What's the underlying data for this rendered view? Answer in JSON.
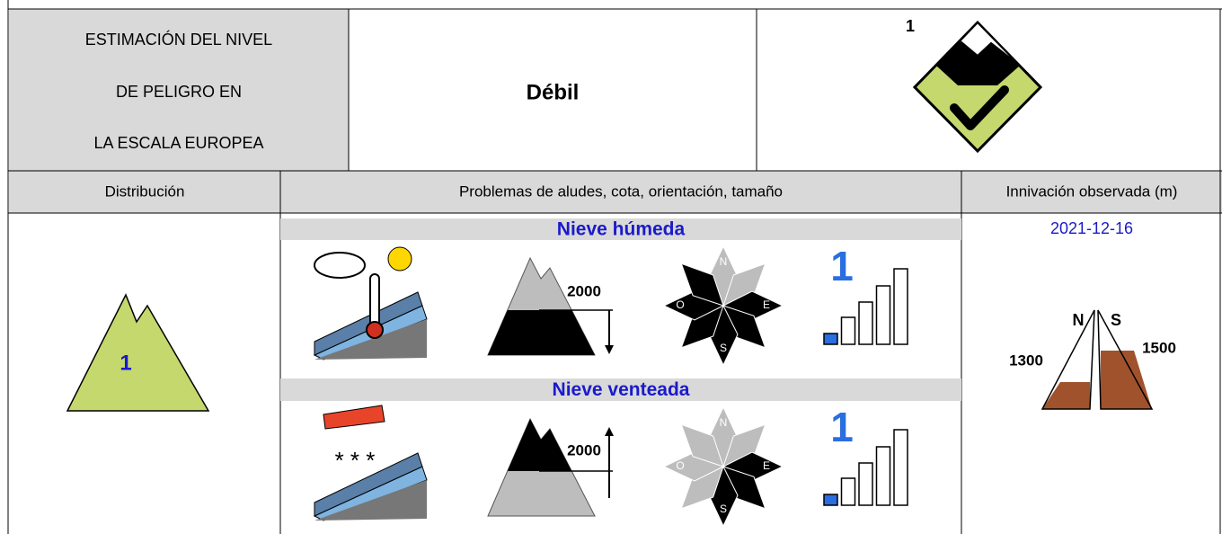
{
  "header": {
    "lines": [
      "ESTIMACIÓN DEL NIVEL",
      "DE PELIGRO EN",
      "LA ESCALA EUROPEA"
    ],
    "level_name": "Débil",
    "level_number": "1"
  },
  "columns": [
    "Distribución",
    "Problemas de aludes, cota, orientación, tamaño",
    "Innivación observada (m)"
  ],
  "distribution": {
    "level": "1"
  },
  "problems": [
    {
      "name": "Nieve húmeda",
      "altitude": "2000",
      "aspects": [
        "N",
        "O",
        "E",
        "S"
      ],
      "size": "1"
    },
    {
      "name": "Nieve venteada",
      "altitude": "2000",
      "aspects": [
        "N",
        "O",
        "E",
        "S"
      ],
      "size": "1"
    }
  ],
  "snow": {
    "date": "2021-12-16",
    "north": "N",
    "south": "S",
    "north_elevation": "1300",
    "south_elevation": "1500"
  }
}
